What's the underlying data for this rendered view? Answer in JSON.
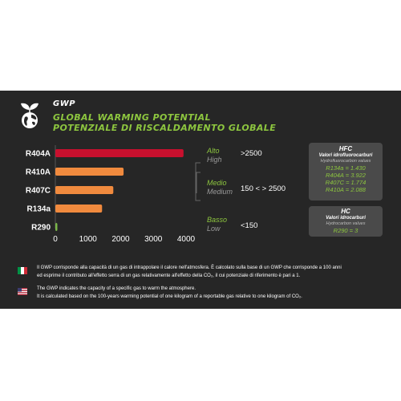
{
  "header": {
    "gwp": "GWP",
    "title_en": "GLOBAL WARMING POTENTIAL",
    "title_it": "POTENZIALE DI RISCALDAMENTO GLOBALE"
  },
  "chart_data": {
    "type": "bar",
    "orientation": "horizontal",
    "categories": [
      "R404A",
      "R410A",
      "R407C",
      "R134a",
      "R290"
    ],
    "values": [
      3922,
      2088,
      1774,
      1430,
      3
    ],
    "colors": [
      "#c8102e",
      "#f08a3e",
      "#f08a3e",
      "#f08a3e",
      "#7ab648"
    ],
    "xlim": [
      0,
      4000
    ],
    "xticks": [
      "0",
      "1000",
      "2000",
      "3000",
      "4000"
    ],
    "grid": false
  },
  "levels": [
    {
      "it": "Alto",
      "en": "High",
      "range": ">2500"
    },
    {
      "it": "Medio",
      "en": "Medium",
      "range": "150 < > 2500"
    },
    {
      "it": "Basso",
      "en": "Low",
      "range": "<150"
    }
  ],
  "hfc_box": {
    "title": "HFC",
    "subtitle_it": "Valori idrofluorocarburi",
    "subtitle_en": "Hydrofluorocarbon values",
    "values": [
      "R134a = 1.430",
      "R404A = 3.922",
      "R407C = 1.774",
      "R410A = 2.088"
    ]
  },
  "hc_box": {
    "title": "HC",
    "subtitle_it": "Valori idrocarburi",
    "subtitle_en": "Hydrocarbon values",
    "values": [
      "R290 = 3"
    ]
  },
  "notes": {
    "it_line1": "Il GWP corrisponde alla capacità di un gas di intrappolare il calore nell'atmosfera. È calcolato sulla base di un GWP che corrisponde a 100 anni",
    "it_line2": "ed esprime il contributo all'effetto serra di un gas relativamente all'effetto della CO₂, il cui potenziale di riferimento è pari a 1.",
    "en_line1": "The GWP indicates the capacity of a specific gas to warm the atmosphere.",
    "en_line2": "It is calculated based on the 100-years warming potential of one kilogram of a reportable gas relative to one kilogram of CO₂."
  },
  "colors": {
    "panel": "#262626",
    "accent_green": "#8dc63f",
    "high_red": "#c8102e",
    "medium_orange": "#f08a3e",
    "low_green": "#7ab648",
    "box_gray": "#4a4a4a"
  },
  "icons": {
    "logo": "globe-sprout-icon",
    "flag_it": "italy-flag-icon",
    "flag_us": "usa-flag-icon"
  }
}
